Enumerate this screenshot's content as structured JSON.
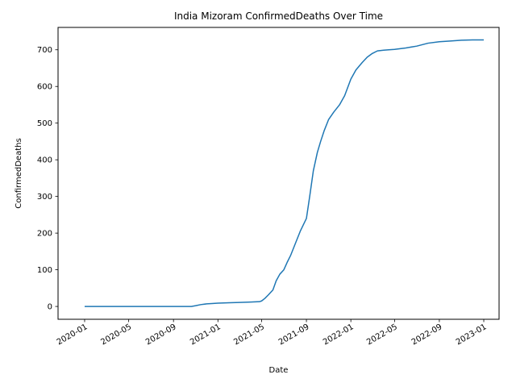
{
  "chart_data": {
    "type": "line",
    "title": "India Mizoram ConfirmedDeaths Over Time",
    "xlabel": "Date",
    "ylabel": "ConfirmedDeaths",
    "xlim": [
      "2019-10-20",
      "2023-02-12"
    ],
    "ylim": [
      -35,
      761
    ],
    "x_ticks": [
      "2020-01",
      "2020-05",
      "2020-09",
      "2021-01",
      "2021-05",
      "2021-09",
      "2022-01",
      "2022-05",
      "2022-09",
      "2023-01"
    ],
    "y_ticks": [
      0,
      100,
      200,
      300,
      400,
      500,
      600,
      700
    ],
    "grid": false,
    "line_color": "#1f77b4",
    "series": [
      {
        "x": [
          "2020-01-01",
          "2020-10-20",
          "2020-11-01",
          "2020-11-15",
          "2020-12-01",
          "2020-12-15",
          "2021-01-01",
          "2021-02-01",
          "2021-03-01",
          "2021-04-01",
          "2021-04-25",
          "2021-05-01",
          "2021-05-10",
          "2021-05-20",
          "2021-06-01",
          "2021-06-10",
          "2021-06-20",
          "2021-07-01",
          "2021-07-10",
          "2021-07-20",
          "2021-08-01",
          "2021-08-15",
          "2021-09-01",
          "2021-09-10",
          "2021-09-20",
          "2021-10-01",
          "2021-10-10",
          "2021-10-20",
          "2021-11-01",
          "2021-11-15",
          "2021-12-01",
          "2021-12-15",
          "2022-01-01",
          "2022-01-15",
          "2022-02-01",
          "2022-02-15",
          "2022-03-01",
          "2022-03-15",
          "2022-04-01",
          "2022-04-15",
          "2022-05-01",
          "2022-06-01",
          "2022-07-01",
          "2022-08-01",
          "2022-09-01",
          "2022-10-01",
          "2022-11-01",
          "2022-12-01",
          "2023-01-01"
        ],
        "y": [
          0,
          0,
          2,
          5,
          7,
          8,
          9,
          10,
          11,
          12,
          13,
          15,
          22,
          32,
          45,
          70,
          88,
          100,
          120,
          140,
          170,
          205,
          240,
          300,
          370,
          420,
          450,
          480,
          510,
          530,
          550,
          575,
          620,
          645,
          665,
          680,
          690,
          697,
          699,
          700,
          701,
          705,
          710,
          718,
          722,
          724,
          726,
          727,
          727
        ]
      }
    ]
  }
}
